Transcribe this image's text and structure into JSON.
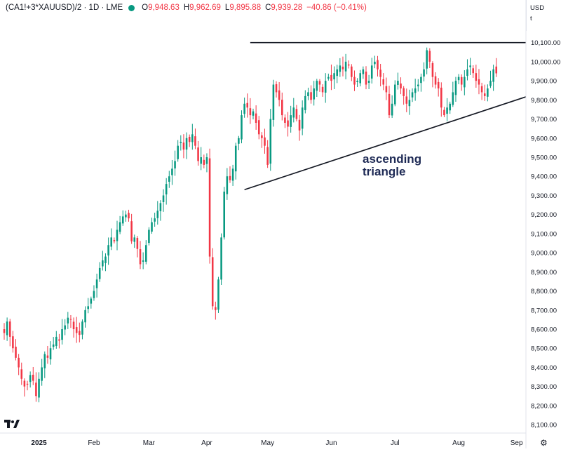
{
  "header": {
    "symbol": "(CA1!+3*XAUUSD)/2 · 1D · LME",
    "o_label": "O",
    "o_value": "9,948.63",
    "h_label": "H",
    "h_value": "9,962.69",
    "l_label": "L",
    "l_value": "9,895.88",
    "c_label": "C",
    "c_value": "9,939.28",
    "change": "−40.86 (−0.41%)"
  },
  "price_axis": {
    "currency": "USD",
    "unit": "t"
  },
  "chart_data": {
    "type": "candlestick",
    "y_ticks": [
      "8,100.00",
      "8,200.00",
      "8,300.00",
      "8,400.00",
      "8,500.00",
      "8,600.00",
      "8,700.00",
      "8,800.00",
      "8,900.00",
      "9,000.00",
      "9,100.00",
      "9,200.00",
      "9,300.00",
      "9,400.00",
      "9,500.00",
      "9,600.00",
      "9,700.00",
      "9,800.00",
      "9,900.00",
      "10,000.00",
      "10,100.00"
    ],
    "y_tick_values": [
      8100,
      8200,
      8300,
      8400,
      8500,
      8600,
      8700,
      8800,
      8900,
      9000,
      9100,
      9200,
      9300,
      9400,
      9500,
      9600,
      9700,
      9800,
      9900,
      10000,
      10100
    ],
    "ylim": [
      8060,
      10220
    ],
    "x_ticks": [
      "2025",
      "Feb",
      "Mar",
      "Apr",
      "May",
      "Jun",
      "Jul",
      "Aug",
      "Sep"
    ],
    "x_tick_index": [
      12,
      31,
      50,
      70,
      91,
      113,
      135,
      157,
      177
    ],
    "annotation": "ascending\ntriangle",
    "colors": {
      "up": "#089981",
      "down": "#f23645",
      "line": "#131722",
      "annotation": "#1e2a55"
    },
    "resistance": {
      "price": 10100,
      "from_index": 85,
      "to_index": 183
    },
    "support": {
      "from_index": 83,
      "from_price": 9330,
      "to_index": 183,
      "to_price": 9830
    },
    "closes": [
      8580,
      8640,
      8560,
      8500,
      8450,
      8400,
      8340,
      8300,
      8310,
      8360,
      8330,
      8250,
      8340,
      8400,
      8470,
      8450,
      8500,
      8520,
      8560,
      8540,
      8600,
      8620,
      8660,
      8650,
      8600,
      8580,
      8570,
      8640,
      8700,
      8720,
      8760,
      8800,
      8860,
      8920,
      8960,
      8980,
      9040,
      9080,
      9060,
      9120,
      9160,
      9190,
      9200,
      9180,
      9060,
      9080,
      9020,
      8940,
      8960,
      9040,
      9120,
      9160,
      9180,
      9220,
      9260,
      9300,
      9360,
      9400,
      9440,
      9480,
      9560,
      9580,
      9540,
      9600,
      9580,
      9620,
      9560,
      9480,
      9500,
      9460,
      9500,
      8980,
      8720,
      8700,
      8860,
      9080,
      9320,
      9400,
      9380,
      9440,
      9560,
      9600,
      9720,
      9780,
      9760,
      9720,
      9740,
      9680,
      9620,
      9600,
      9560,
      9460,
      9700,
      9880,
      9840,
      9800,
      9720,
      9680,
      9660,
      9720,
      9760,
      9700,
      9640,
      9760,
      9820,
      9840,
      9800,
      9860,
      9900,
      9880,
      9840,
      9900,
      9920,
      9900,
      9940,
      9960,
      9980,
      9960,
      10000,
      9980,
      9920,
      9880,
      9900,
      9940,
      9960,
      9880,
      9900,
      9980,
      10000,
      9960,
      9920,
      9880,
      9840,
      9720,
      9780,
      9880,
      9900,
      9860,
      9820,
      9780,
      9800,
      9840,
      9860,
      9880,
      9920,
      9960,
      10060,
      10000,
      9920,
      9880,
      9860,
      9760,
      9720,
      9760,
      9780,
      9840,
      9900,
      9920,
      9880,
      9920,
      9960,
      9980,
      9940,
      9900,
      9880,
      9840,
      9820,
      9860,
      9900,
      9960,
      9939
    ]
  }
}
